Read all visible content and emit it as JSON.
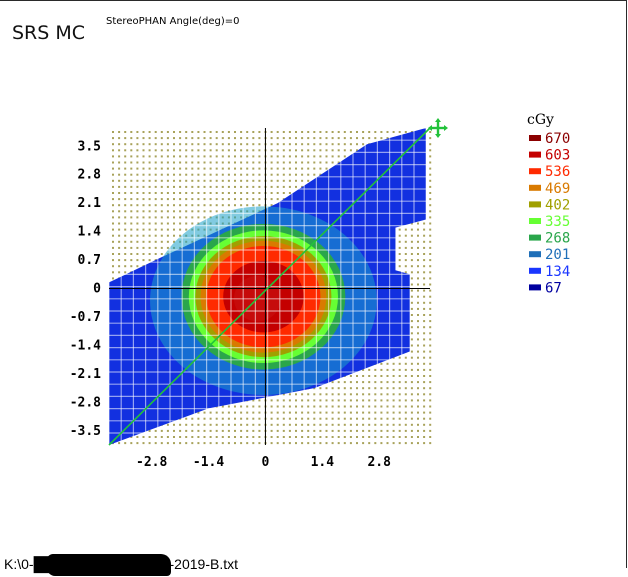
{
  "window": {
    "title": "SRS MC",
    "subtitle": "StereoPHAN Angle(deg)=0",
    "file_path": "K:\\0-█████████17-May-2019-B.txt"
  },
  "colors": {
    "grid_dots": "#a8a25a",
    "axis_line": "#000000",
    "diagonal_line": "#22c23a",
    "crosshair_marker": "#22c23a",
    "redaction": "#000000"
  },
  "chart_data": {
    "type": "heatmap",
    "title": "",
    "xlabel": "",
    "ylabel": "",
    "x_ticks": [
      "-2.8",
      "-1.4",
      "0",
      "1.4",
      "2.8"
    ],
    "y_ticks": [
      "3.5",
      "2.8",
      "2.1",
      "1.4",
      "0.7",
      "0",
      "-0.7",
      "-1.4",
      "-2.1",
      "-2.8",
      "-3.5"
    ],
    "xlim": [
      -3.85,
      4.05
    ],
    "ylim": [
      -3.85,
      3.95
    ],
    "legend": {
      "title": "cGy",
      "placement": "right",
      "entries": [
        {
          "label": "670",
          "value": 670,
          "color": "#8b0000"
        },
        {
          "label": "603",
          "value": 603,
          "color": "#c40000"
        },
        {
          "label": "536",
          "value": 536,
          "color": "#ff2a00"
        },
        {
          "label": "469",
          "value": 469,
          "color": "#d97a00"
        },
        {
          "label": "402",
          "value": 402,
          "color": "#a0a000"
        },
        {
          "label": "335",
          "value": 335,
          "color": "#66ff33"
        },
        {
          "label": "268",
          "value": 268,
          "color": "#2aa64b"
        },
        {
          "label": "201",
          "value": 201,
          "color": "#1f6fb8"
        },
        {
          "label": "134",
          "value": 134,
          "color": "#1a36ff"
        },
        {
          "label": "67",
          "value": 67,
          "color": "#0000a0"
        }
      ]
    },
    "dose_map": {
      "peak_cgy": 670,
      "hotspot_center": [
        -0.05,
        -0.2
      ],
      "hotspot_radius_x": 1.8,
      "hotspot_radius_y": 1.6,
      "coverage_polygon": [
        [
          -3.85,
          -3.85
        ],
        [
          -1.4,
          -2.95
        ],
        [
          1.2,
          -2.45
        ],
        [
          3.55,
          -1.55
        ],
        [
          3.55,
          0.35
        ],
        [
          3.2,
          0.45
        ],
        [
          3.2,
          1.5
        ],
        [
          3.95,
          1.7
        ],
        [
          3.95,
          3.95
        ],
        [
          2.5,
          3.55
        ],
        [
          0.3,
          2.1
        ],
        [
          -2.6,
          0.75
        ],
        [
          -3.85,
          0.15
        ]
      ]
    },
    "diagonal_line": {
      "from": [
        -3.85,
        -3.85
      ],
      "to": [
        4.05,
        3.95
      ]
    },
    "grid": true
  }
}
